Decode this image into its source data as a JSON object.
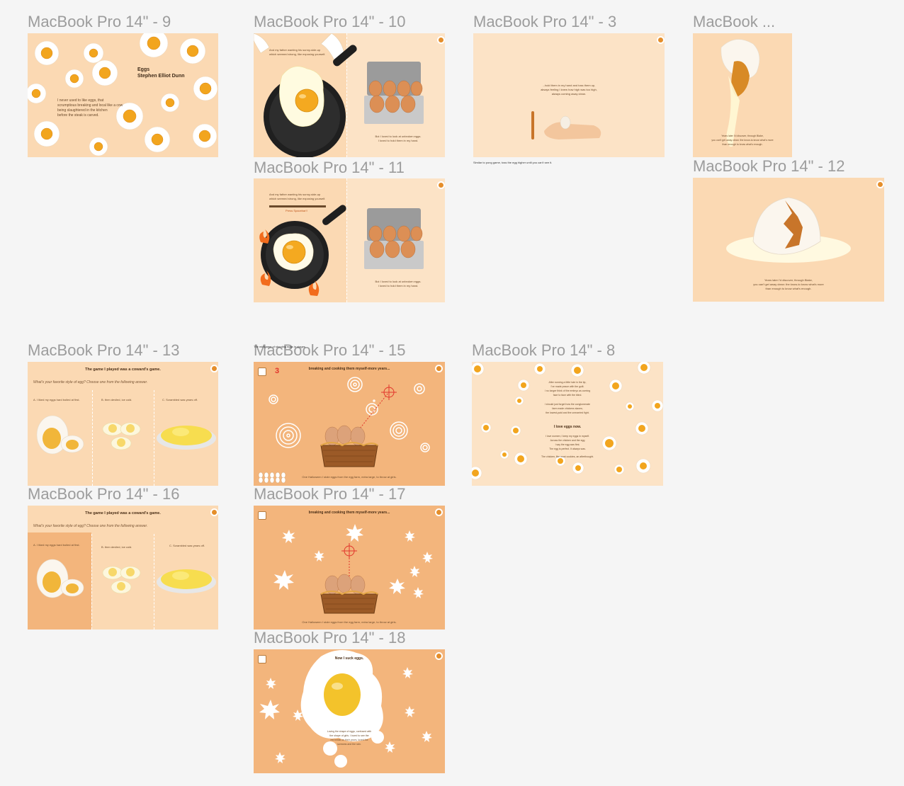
{
  "frames": {
    "f9": {
      "label": "MacBook Pro 14\" - 9",
      "title": "Eggs",
      "author": "Stephen Elliot Dunn",
      "body": [
        "I never used to like eggs, that",
        "scrumptious breaking and local like a cow",
        "being slaughtered in the kitchen",
        "before the steak is carved."
      ]
    },
    "f10": {
      "label": "MacBook Pro 14\" - 10",
      "left": [
        "And my father wanting his sunny-side-up",
        "which seemed strong, like exposing yourself."
      ],
      "right": [
        "But I loved to look at unbroken eggs.",
        "I loved to hold them in my hand."
      ]
    },
    "f3": {
      "label": "MacBook Pro 14\" - 3",
      "body": [
        "...hold them in my hand and toss them up,",
        "always feeling I knew how high was too high,",
        "always coming away clean."
      ],
      "note": "Similar to pong game, toss the egg higher until you can't see it."
    },
    "fmac": {
      "label": "MacBook ...",
      "body": [
        "Years later I'd discover, through Blake,",
        "you can't get away clean: the know-to know what's more",
        "than enough to know what's enough."
      ]
    },
    "f11": {
      "label": "MacBook Pro 14\" - 11",
      "left": [
        "And my father wanting his sunny-side-up",
        "which seemed strong, like exposing yourself."
      ],
      "bar_label": "Press Spacebar!!",
      "right": [
        "But I loved to look at unbroken eggs.",
        "I loved to hold them in my hand."
      ]
    },
    "f12": {
      "label": "MacBook Pro 14\" - 12",
      "body": [
        "Years later I'd discover, through Blake,",
        "you can't get away clean: the know-to know what's more",
        "than enough to know what's enough."
      ]
    },
    "f13": {
      "label": "MacBook Pro 14\" - 13",
      "title": "The game I played was a coward's game.",
      "question": "What's your favorite style of egg? Choose one from the following answer.",
      "options": [
        "A. I liked my eggs hard boiled at first.",
        "B. then deviled, ice cold.",
        "C. Scrambled was years off."
      ]
    },
    "f15": {
      "label": "MacBook Pro 14\" - 15",
      "caption": "The minigame of shooting eggs in stages",
      "score": "3",
      "title": "breaking and cooking them myself-more years...",
      "bottom": "One Halloween I stole eggs from the egg farm, extra large, to throw at girls."
    },
    "f8": {
      "label": "MacBook Pro 14\" - 8",
      "p1": [
        "After running a little hole in the tip,",
        "I've made peace with the guilt.",
        "I no longer think of the embryo as coming",
        "face to face with the blind."
      ],
      "p2": [
        "I should just forget how the conglomerate",
        "farm made chickens slaves;",
        "the lowest-paid and the unmarried fight."
      ],
      "heading": "I love eggs now.",
      "p3": [
        "I love women; I keep my eggs in myself.",
        "Across the chicken and the egg",
        "I say the egg was first.",
        "The egg is perfect. It always was."
      ],
      "p4": "The chicken, like most cookies, an afterthought."
    },
    "f16": {
      "label": "MacBook Pro 14\" - 16",
      "title": "The game I played was a coward's game.",
      "question": "What's your favorite style of egg? Choose one from the following answer.",
      "options": [
        "A. I liked my eggs hard boiled at first.",
        "B. then deviled, ice cold.",
        "C. Scrambled was years off."
      ]
    },
    "f17": {
      "label": "MacBook Pro 14\" - 17",
      "title": "breaking and cooking them myself-more years...",
      "bottom": "One Halloween I stole eggs from the egg farm, extra large, to throw at girls."
    },
    "f18": {
      "label": "MacBook Pro 14\" - 18",
      "title": "Now I suck eggs.",
      "body": [
        "Loving the shape of eggs, confused with",
        "the shape of girls. I loved to see the",
        "red break on their yours, loved the",
        "screams and the rain."
      ]
    }
  },
  "colors": {
    "canvas": "#f5f5f5",
    "frame_cream": "#fce3c6",
    "frame_orange": "#f3b57c",
    "yolk": "#f2a51e",
    "target_red": "#e2352b"
  }
}
